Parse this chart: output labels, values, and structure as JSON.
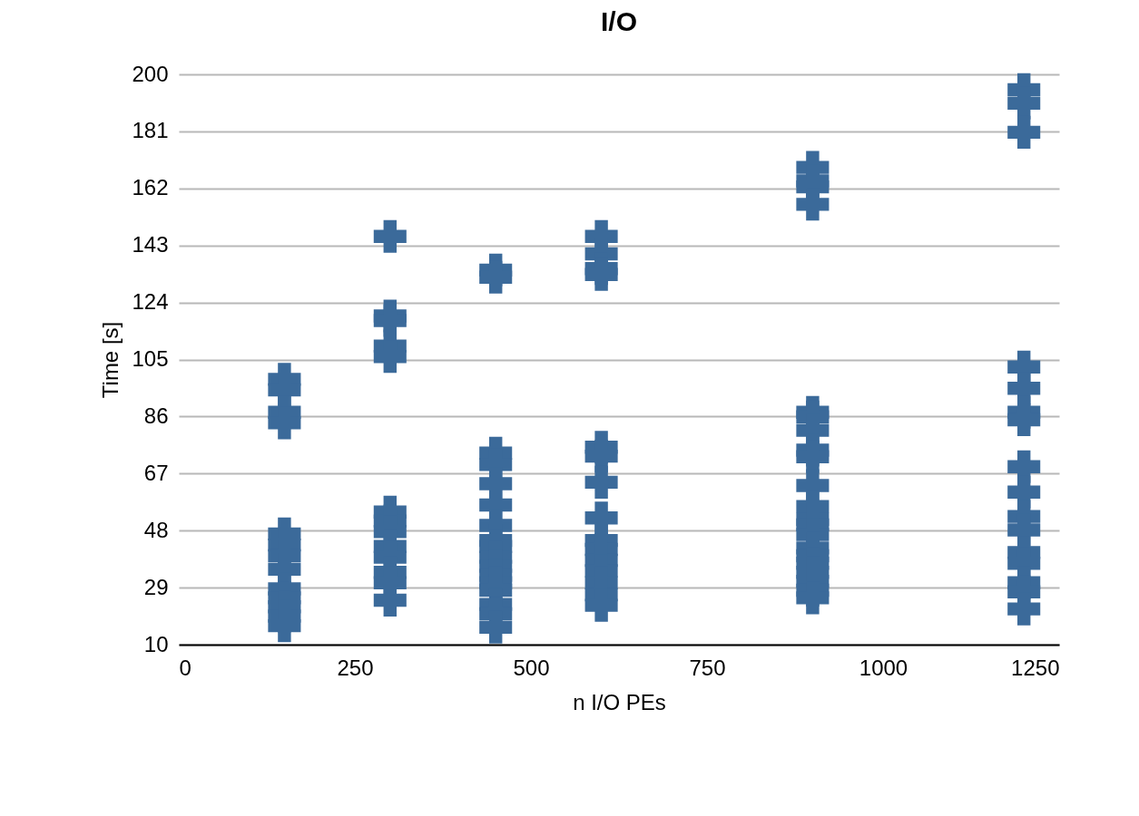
{
  "chart_data": {
    "type": "scatter",
    "title": "I/O",
    "xlabel": "n I/O PEs",
    "ylabel": "Time [s]",
    "xlim": [
      0,
      1250
    ],
    "xticks": [
      0,
      250,
      500,
      750,
      1000,
      1250
    ],
    "ylim": [
      10,
      200
    ],
    "yticks": [
      10,
      29,
      48,
      67,
      86,
      105,
      124,
      143,
      162,
      181,
      200
    ],
    "grid": "y",
    "marker": "cross",
    "series": [
      {
        "color": "#3b6a9a",
        "x": [
          150,
          150,
          150,
          150,
          150,
          150,
          150,
          150,
          150,
          150,
          150,
          150,
          150,
          300,
          300,
          300,
          300,
          300,
          300,
          300,
          300,
          300,
          300,
          300,
          300,
          300,
          450,
          450,
          450,
          450,
          450,
          450,
          450,
          450,
          450,
          450,
          450,
          450,
          450,
          450,
          450,
          450,
          450,
          600,
          600,
          600,
          600,
          600,
          600,
          600,
          600,
          600,
          600,
          600,
          600,
          600,
          600,
          600,
          900,
          900,
          900,
          900,
          900,
          900,
          900,
          900,
          900,
          900,
          900,
          900,
          900,
          900,
          900,
          900,
          900,
          900,
          900,
          900,
          900,
          1200,
          1200,
          1200,
          1200,
          1200,
          1200,
          1200,
          1200,
          1200,
          1200,
          1200,
          1200,
          1200,
          1200,
          1200,
          1200
        ],
        "values": [
          98.4,
          94.9,
          87.4,
          83.9,
          46.9,
          43.2,
          39.6,
          35.1,
          28.6,
          25.6,
          22.6,
          19.5,
          16.3,
          146,
          119.5,
          118,
          109.5,
          106,
          54.2,
          51.2,
          47.7,
          42.7,
          39.1,
          34.1,
          30.6,
          24.8,
          134.8,
          132.4,
          73.8,
          70,
          63.6,
          56.5,
          49.7,
          44.7,
          42.7,
          39.1,
          36.1,
          33.1,
          30.6,
          28.1,
          23.4,
          20.3,
          15.8,
          146,
          140.2,
          135.3,
          133.3,
          75.8,
          72.8,
          64.1,
          52.2,
          44.7,
          41.7,
          38.1,
          34.6,
          30.6,
          26.6,
          23.1,
          169,
          164.5,
          162.5,
          156.7,
          87.4,
          85.9,
          81.4,
          74.8,
          72.6,
          63,
          56,
          51.7,
          49.9,
          46.7,
          42.2,
          39.6,
          37.1,
          34.1,
          31.1,
          28.1,
          25.6,
          194.9,
          190.4,
          180.7,
          102.5,
          95.4,
          87.4,
          84.9,
          69.3,
          60.8,
          52.7,
          48.2,
          40.7,
          37.1,
          30.6,
          27.6,
          21.9
        ]
      }
    ]
  }
}
